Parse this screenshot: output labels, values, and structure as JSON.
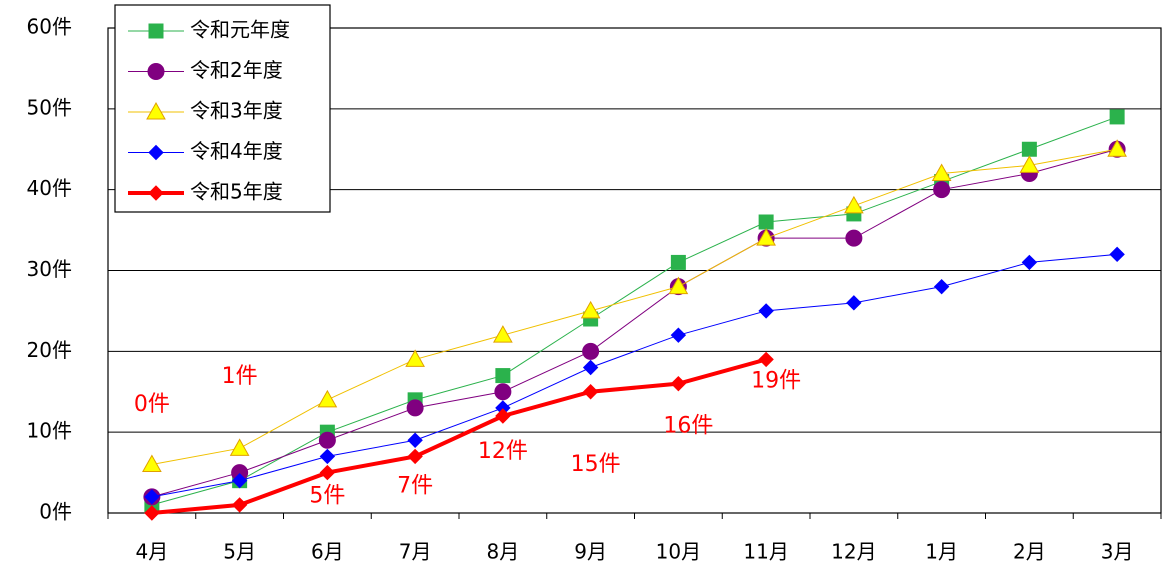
{
  "chart_data": {
    "type": "line",
    "categories": [
      "4月",
      "5月",
      "6月",
      "7月",
      "8月",
      "9月",
      "10月",
      "11月",
      "12月",
      "1月",
      "2月",
      "3月"
    ],
    "ylim": [
      0,
      60
    ],
    "yticks": [
      {
        "value": 0,
        "label": "0件"
      },
      {
        "value": 10,
        "label": "10件"
      },
      {
        "value": 20,
        "label": "20件"
      },
      {
        "value": 30,
        "label": "30件"
      },
      {
        "value": 40,
        "label": "40件"
      },
      {
        "value": 50,
        "label": "50件"
      },
      {
        "value": 60,
        "label": "60件"
      }
    ],
    "grid": true,
    "legend": "top-left",
    "series": [
      {
        "name": "令和元年度",
        "color": "#2bb24c",
        "marker": "square",
        "line_width": 1,
        "values": [
          1,
          4,
          10,
          14,
          17,
          24,
          31,
          36,
          37,
          41,
          45,
          49
        ]
      },
      {
        "name": "令和2年度",
        "color": "#800080",
        "marker": "circle",
        "line_width": 1,
        "values": [
          2,
          5,
          9,
          13,
          15,
          20,
          28,
          34,
          34,
          40,
          42,
          45
        ]
      },
      {
        "name": "令和3年度",
        "color": "#ffff00",
        "marker": "triangle",
        "line_width": 1,
        "values": [
          6,
          8,
          14,
          19,
          22,
          25,
          28,
          34,
          38,
          42,
          43,
          45
        ]
      },
      {
        "name": "令和4年度",
        "color": "#0000ff",
        "marker": "diamond",
        "line_width": 1,
        "values": [
          2,
          4,
          7,
          9,
          13,
          18,
          22,
          25,
          26,
          28,
          31,
          32
        ]
      },
      {
        "name": "令和5年度",
        "color": "#ff0000",
        "marker": "diamond",
        "line_width": 4,
        "values": [
          0,
          1,
          5,
          7,
          12,
          15,
          16,
          19,
          null,
          null,
          null,
          null
        ],
        "value_labels": [
          "0件",
          "1件",
          "5件",
          "7件",
          "12件",
          "15件",
          "16件",
          "19件",
          null,
          null,
          null,
          null
        ]
      }
    ]
  }
}
